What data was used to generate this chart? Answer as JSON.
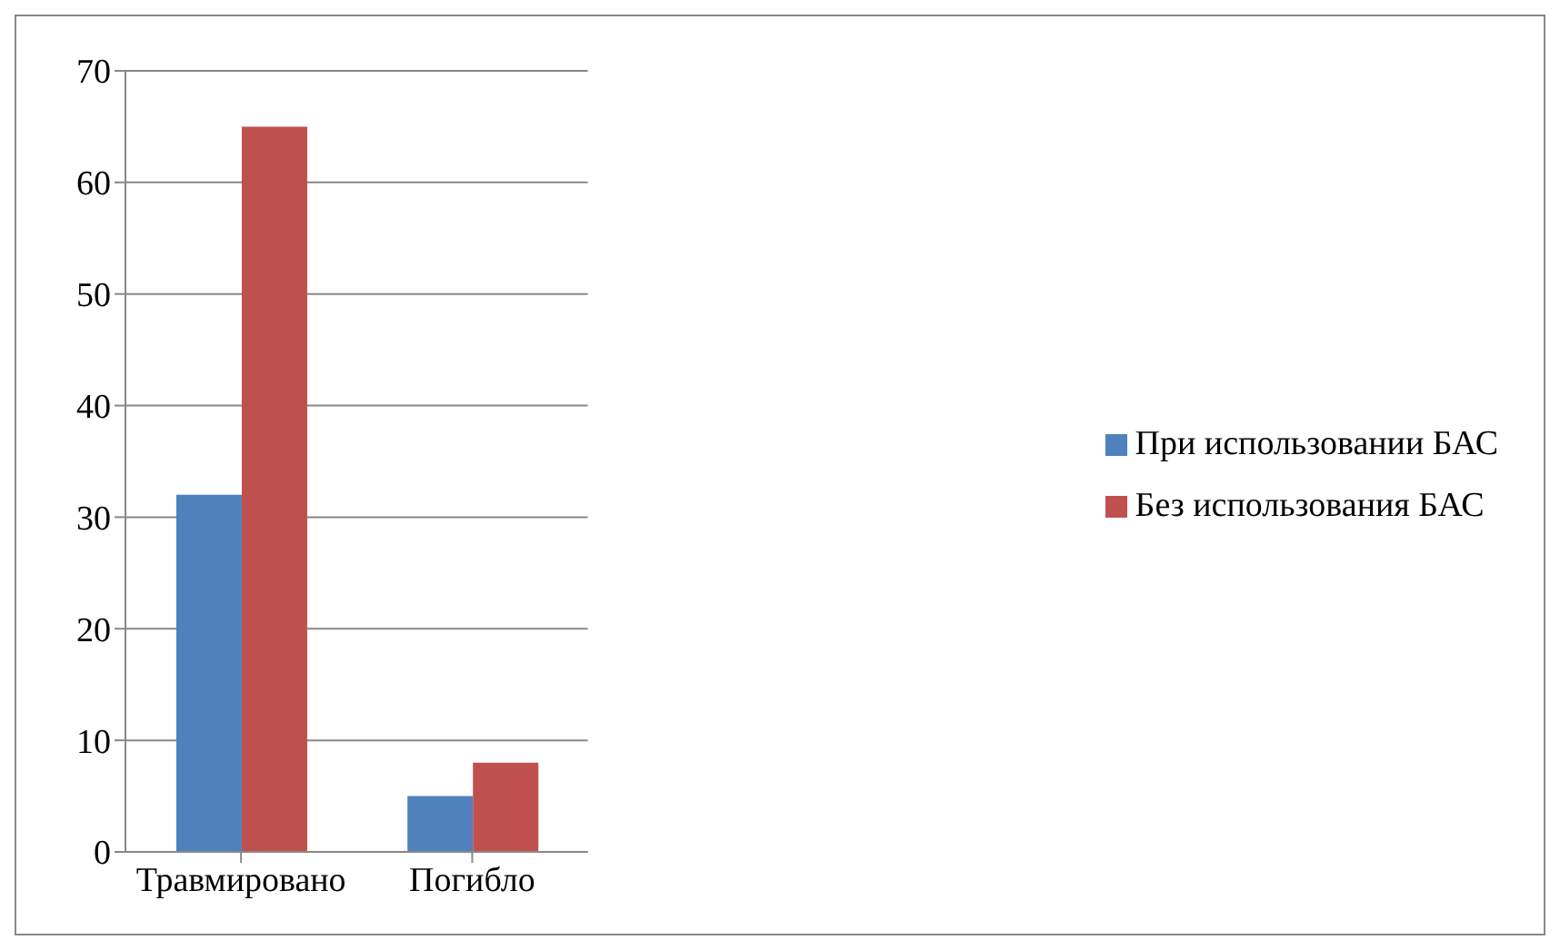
{
  "chart_data": {
    "type": "bar",
    "categories": [
      "Травмировано",
      "Погибло"
    ],
    "series": [
      {
        "name": "При использовании БАС",
        "color": "#4f81bd",
        "values": [
          32,
          5
        ]
      },
      {
        "name": "Без использования БАС",
        "color": "#c0504d",
        "values": [
          65,
          8
        ]
      }
    ],
    "ylim": [
      0,
      70
    ],
    "yticks": [
      0,
      10,
      20,
      30,
      40,
      50,
      60,
      70
    ],
    "grid": "y",
    "legend": "right"
  }
}
